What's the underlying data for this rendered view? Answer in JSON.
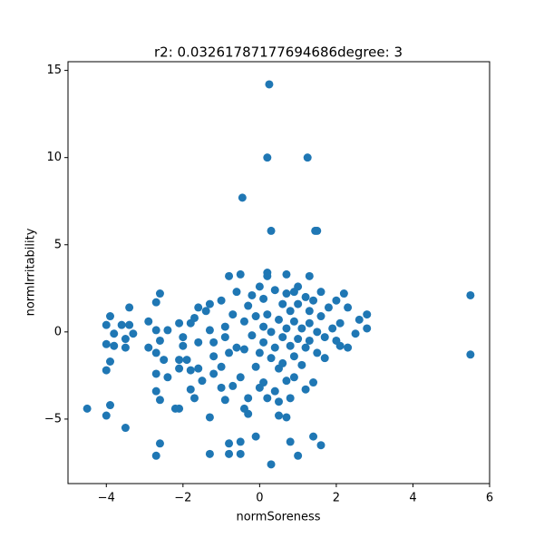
{
  "chart_data": {
    "type": "scatter",
    "title": "r2: 0.03261787177694686degree: 3",
    "xlabel": "normSoreness",
    "ylabel": "normIrritability",
    "color": "#1f77b4",
    "xlim": [
      -5,
      6
    ],
    "ylim": [
      -8.7,
      15.5
    ],
    "xticks": [
      {
        "value": -4,
        "label": "−4"
      },
      {
        "value": -2,
        "label": "−2"
      },
      0,
      2,
      4,
      6
    ],
    "yticks": [
      {
        "value": -5,
        "label": "−5"
      },
      0,
      5,
      10,
      15
    ],
    "x": [
      0.25,
      0.2,
      1.25,
      -0.45,
      0.3,
      1.45,
      1.5,
      5.5,
      5.5,
      -4.5,
      0.3,
      -2.7,
      -2.6,
      -0.8,
      -0.5,
      -0.8,
      -0.5,
      -1.3,
      1.0,
      0.8,
      1.4,
      1.6,
      -0.1,
      -3.5,
      -4.0,
      -3.9,
      -2.1,
      -1.3,
      0.5,
      0.7,
      -0.4,
      -0.3,
      -4.0,
      -3.9,
      -4.0,
      -3.8,
      -4.0,
      -3.9,
      -3.6,
      -3.4,
      -3.4,
      -3.5,
      -3.5,
      -3.3,
      -3.8,
      -2.9,
      -2.9,
      -2.7,
      -2.6,
      -2.7,
      -2.6,
      -2.7,
      -2.5,
      -2.7,
      -2.7,
      -2.6,
      -2.4,
      -2.4,
      -2.1,
      -2.0,
      -2.1,
      -2.0,
      -2.1,
      -1.8,
      -1.8,
      -1.7,
      -1.6,
      -1.6,
      -1.6,
      -1.7,
      -1.5,
      -1.4,
      -1.3,
      -1.3,
      -1.2,
      -1.2,
      -1.2,
      -1.0,
      -1.0,
      -0.9,
      -0.9,
      -0.9,
      -0.8,
      -0.7,
      -0.7,
      -0.6,
      -0.5,
      -0.8,
      -0.5,
      -0.4,
      -0.4,
      -0.3,
      -0.3,
      -0.2,
      -0.2,
      -0.1,
      -0.1,
      0.0,
      0.0,
      0.1,
      0.1,
      0.1,
      0.1,
      0.2,
      0.2,
      0.2,
      0.2,
      0.3,
      0.3,
      0.4,
      0.4,
      0.4,
      0.5,
      0.5,
      0.6,
      0.6,
      0.6,
      0.7,
      0.7,
      0.7,
      0.7,
      0.8,
      0.8,
      0.8,
      0.9,
      0.9,
      0.9,
      0.9,
      1.0,
      1.0,
      1.1,
      1.1,
      1.2,
      1.2,
      1.2,
      1.3,
      1.3,
      1.3,
      1.3,
      1.4,
      1.4,
      1.5,
      1.5,
      1.6,
      1.6,
      1.7,
      1.8,
      1.9,
      2.0,
      2.0,
      2.1,
      2.1,
      2.2,
      2.3,
      2.3,
      2.5,
      2.6,
      2.8,
      2.8,
      -2.2,
      -1.9,
      -1.0,
      -0.6,
      0.0,
      1.7,
      1.0,
      -1.8,
      0.5
    ],
    "values": [
      14.2,
      10,
      10,
      7.7,
      5.8,
      5.8,
      5.8,
      2.1,
      -1.3,
      -4.4,
      -7.6,
      -7.1,
      -6.4,
      -6.4,
      -6.3,
      -7.0,
      -7.0,
      -7.0,
      -7.1,
      -6.3,
      -6.0,
      -6.5,
      -6.0,
      -5.5,
      -4.8,
      -4.2,
      -4.4,
      -4.9,
      -4.8,
      -4.9,
      -4.4,
      -4.7,
      -2.2,
      -1.7,
      -0.7,
      -0.8,
      0.4,
      0.9,
      0.4,
      0.4,
      1.4,
      -0.4,
      -0.9,
      -0.1,
      -0.1,
      0.6,
      -0.9,
      1.7,
      2.2,
      0.1,
      -0.5,
      -1.2,
      -1.6,
      -2.4,
      -3.4,
      -3.9,
      -2.6,
      0.1,
      0.5,
      -0.3,
      -1.6,
      -0.8,
      -2.1,
      -2.2,
      0.5,
      0.8,
      1.4,
      -0.6,
      -2.1,
      -3.8,
      -2.8,
      1.2,
      1.6,
      0.1,
      -0.6,
      -1.4,
      -2.4,
      -3.2,
      1.8,
      -0.3,
      0.3,
      -3.9,
      -1.2,
      1.0,
      -3.1,
      2.3,
      3.3,
      3.2,
      -2.6,
      -1.0,
      0.6,
      1.5,
      -3.8,
      -0.2,
      2.1,
      -2.0,
      0.9,
      -1.2,
      -3.2,
      1.9,
      0.3,
      -0.6,
      -2.9,
      3.2,
      3.4,
      -3.8,
      1.0,
      -1.5,
      0.0,
      2.4,
      -0.9,
      -3.4,
      0.7,
      -2.1,
      1.6,
      -0.3,
      -1.8,
      2.2,
      3.3,
      0.2,
      -2.8,
      -0.8,
      1.2,
      -3.8,
      2.3,
      0.6,
      -1.4,
      -2.6,
      -0.4,
      1.6,
      0.2,
      -1.9,
      2.0,
      -0.9,
      -3.3,
      3.2,
      1.2,
      0.5,
      -0.5,
      -2.9,
      1.8,
      -1.2,
      0.0,
      0.9,
      2.3,
      -0.3,
      1.4,
      0.2,
      1.8,
      -0.5,
      -0.8,
      0.5,
      2.2,
      1.4,
      -0.9,
      -0.1,
      0.7,
      1.0,
      0.2,
      -4.4,
      -1.6,
      -2.0,
      -0.9,
      2.6,
      -1.5,
      2.6,
      -3.3,
      -4.0
    ]
  }
}
